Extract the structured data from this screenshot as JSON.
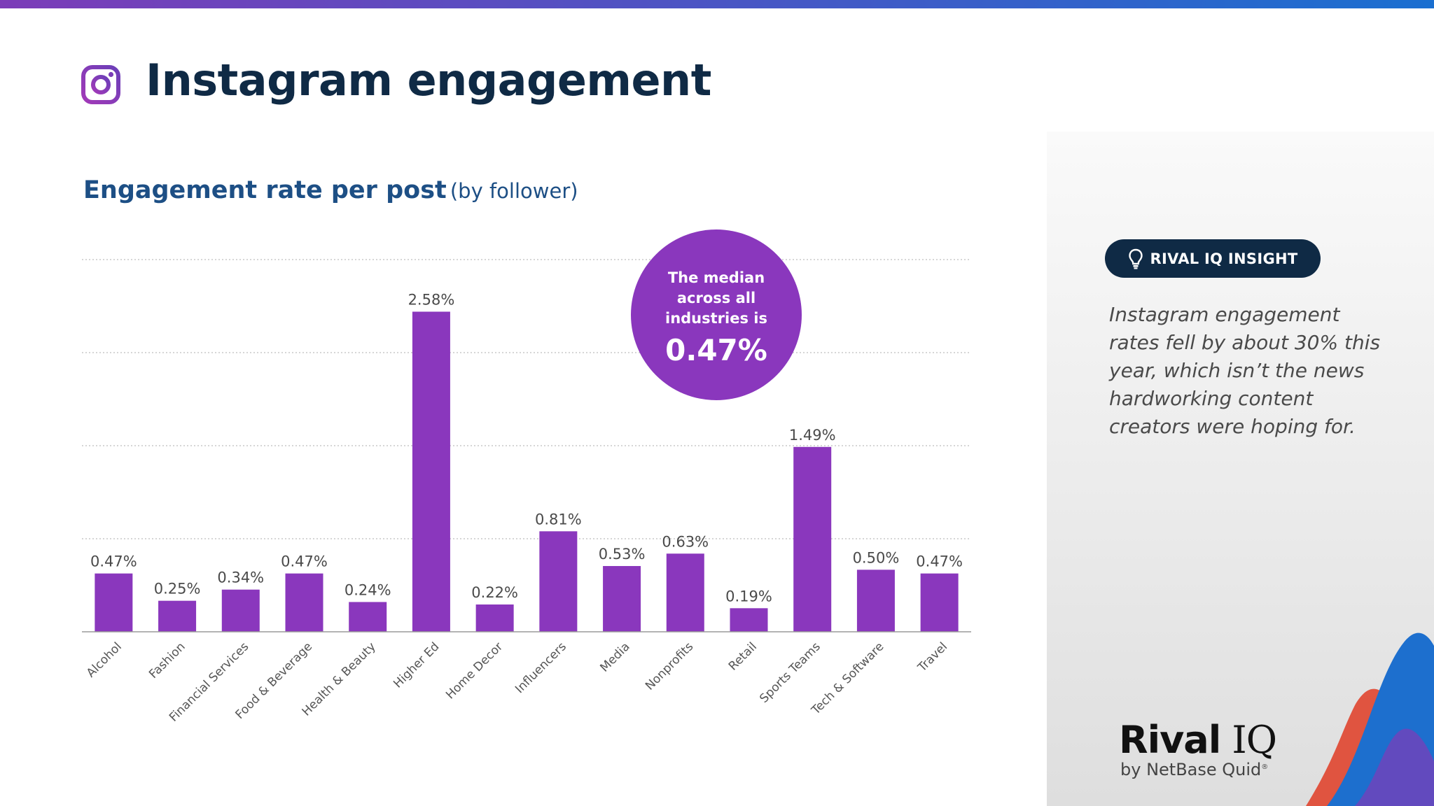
{
  "header": {
    "title": "Instagram engagement",
    "icon": "instagram-icon"
  },
  "colors": {
    "bar": "#8a37bd",
    "title": "#0f2a45",
    "subtitle": "#1d4f85",
    "circle": "#8a37bd"
  },
  "chart_data": {
    "type": "bar",
    "title": "Engagement rate per post",
    "subtitle": "(by follower)",
    "categories": [
      "Alcohol",
      "Fashion",
      "Financial Services",
      "Food & Beverage",
      "Health & Beauty",
      "Higher Ed",
      "Home Decor",
      "Influencers",
      "Media",
      "Nonprofits",
      "Retail",
      "Sports Teams",
      "Tech & Software",
      "Travel"
    ],
    "values": [
      0.47,
      0.25,
      0.34,
      0.47,
      0.24,
      2.58,
      0.22,
      0.81,
      0.53,
      0.63,
      0.19,
      1.49,
      0.5,
      0.47
    ],
    "labels": [
      "0.47%",
      "0.25%",
      "0.34%",
      "0.47%",
      "0.24%",
      "2.58%",
      "0.22%",
      "0.81%",
      "0.53%",
      "0.63%",
      "0.19%",
      "1.49%",
      "0.50%",
      "0.47%"
    ],
    "ylim": [
      0,
      3
    ],
    "gridlines": [
      0.75,
      1.5,
      2.25,
      3.0
    ],
    "unit": "%",
    "xlabel": "",
    "ylabel": ""
  },
  "median": {
    "text": "The median across all industries is",
    "value": "0.47%"
  },
  "insight": {
    "label": "RIVAL IQ INSIGHT",
    "icon": "lightbulb-icon",
    "text": "Instagram engagement rates fell by about 30% this year, which isn’t the news hardworking content creators were hoping for."
  },
  "logo": {
    "brand": "Rival",
    "brand_suffix": "IQ",
    "tagline": "by NetBase Quid",
    "tagline_mark": "®"
  }
}
